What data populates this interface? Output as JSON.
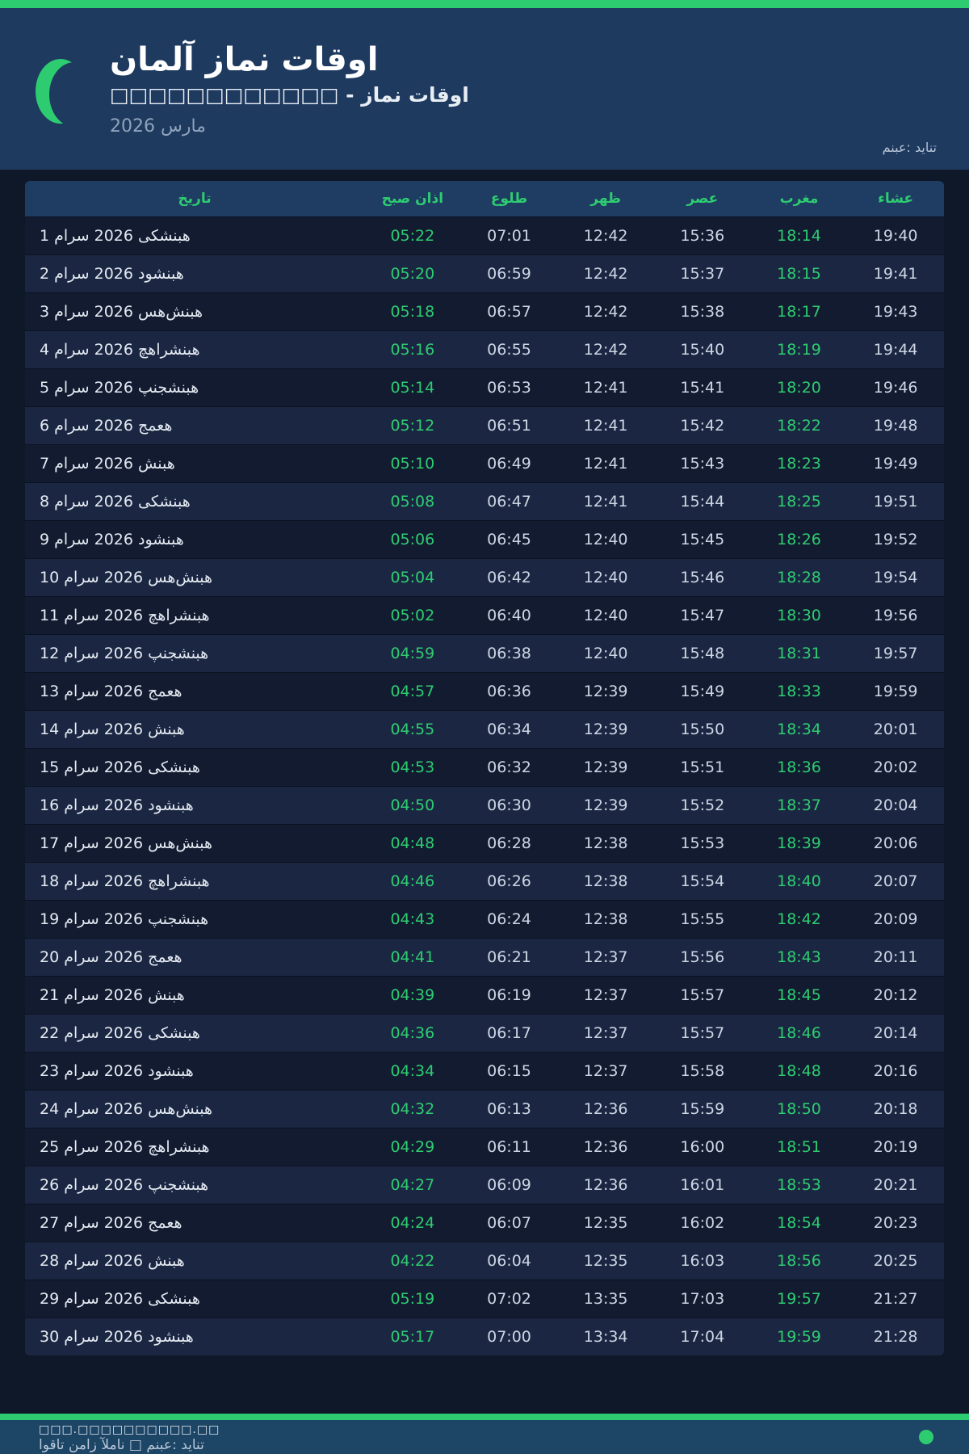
{
  "theme": {
    "accent_green": "#2ecc71",
    "header_bg": "#1e3a5f",
    "footer_bg": "#1d4566",
    "page_bg": "#0e1828",
    "row_dark": "#121b30",
    "row_light": "#1b2742",
    "header_row_bg": "#1f3c63"
  },
  "header": {
    "crescent_icon": "crescent-moon",
    "title": "اوقات نماز آلمان",
    "subtitle": "اوقات نماز - □□□□□□□□□□□□",
    "month": "مارس 2026",
    "source": "منبع: دیانت"
  },
  "table": {
    "columns": [
      {
        "key": "date",
        "label": "تاریخ"
      },
      {
        "key": "fajr",
        "label": "اذان صبح"
      },
      {
        "key": "sunrise",
        "label": "طلوع"
      },
      {
        "key": "dhuhr",
        "label": "ظهر"
      },
      {
        "key": "asr",
        "label": "عصر"
      },
      {
        "key": "maghrib",
        "label": "مغرب"
      },
      {
        "key": "isha",
        "label": "عشاء"
      }
    ],
    "rows": [
      {
        "date": "1 مارس 2026 یکشنبه",
        "fajr": "05:22",
        "sunrise": "07:01",
        "dhuhr": "12:42",
        "asr": "15:36",
        "maghrib": "18:14",
        "isha": "19:40"
      },
      {
        "date": "2 مارس 2026 دوشنبه",
        "fajr": "05:20",
        "sunrise": "06:59",
        "dhuhr": "12:42",
        "asr": "15:37",
        "maghrib": "18:15",
        "isha": "19:41"
      },
      {
        "date": "3 مارس 2026 سه‌شنبه",
        "fajr": "05:18",
        "sunrise": "06:57",
        "dhuhr": "12:42",
        "asr": "15:38",
        "maghrib": "18:17",
        "isha": "19:43"
      },
      {
        "date": "4 مارس 2026 چهارشنبه",
        "fajr": "05:16",
        "sunrise": "06:55",
        "dhuhr": "12:42",
        "asr": "15:40",
        "maghrib": "18:19",
        "isha": "19:44"
      },
      {
        "date": "5 مارس 2026 پنجشنبه",
        "fajr": "05:14",
        "sunrise": "06:53",
        "dhuhr": "12:41",
        "asr": "15:41",
        "maghrib": "18:20",
        "isha": "19:46"
      },
      {
        "date": "6 مارس 2026 جمعه",
        "fajr": "05:12",
        "sunrise": "06:51",
        "dhuhr": "12:41",
        "asr": "15:42",
        "maghrib": "18:22",
        "isha": "19:48"
      },
      {
        "date": "7 مارس 2026 شنبه",
        "fajr": "05:10",
        "sunrise": "06:49",
        "dhuhr": "12:41",
        "asr": "15:43",
        "maghrib": "18:23",
        "isha": "19:49"
      },
      {
        "date": "8 مارس 2026 یکشنبه",
        "fajr": "05:08",
        "sunrise": "06:47",
        "dhuhr": "12:41",
        "asr": "15:44",
        "maghrib": "18:25",
        "isha": "19:51"
      },
      {
        "date": "9 مارس 2026 دوشنبه",
        "fajr": "05:06",
        "sunrise": "06:45",
        "dhuhr": "12:40",
        "asr": "15:45",
        "maghrib": "18:26",
        "isha": "19:52"
      },
      {
        "date": "10 مارس 2026 سه‌شنبه",
        "fajr": "05:04",
        "sunrise": "06:42",
        "dhuhr": "12:40",
        "asr": "15:46",
        "maghrib": "18:28",
        "isha": "19:54"
      },
      {
        "date": "11 مارس 2026 چهارشنبه",
        "fajr": "05:02",
        "sunrise": "06:40",
        "dhuhr": "12:40",
        "asr": "15:47",
        "maghrib": "18:30",
        "isha": "19:56"
      },
      {
        "date": "12 مارس 2026 پنجشنبه",
        "fajr": "04:59",
        "sunrise": "06:38",
        "dhuhr": "12:40",
        "asr": "15:48",
        "maghrib": "18:31",
        "isha": "19:57"
      },
      {
        "date": "13 مارس 2026 جمعه",
        "fajr": "04:57",
        "sunrise": "06:36",
        "dhuhr": "12:39",
        "asr": "15:49",
        "maghrib": "18:33",
        "isha": "19:59"
      },
      {
        "date": "14 مارس 2026 شنبه",
        "fajr": "04:55",
        "sunrise": "06:34",
        "dhuhr": "12:39",
        "asr": "15:50",
        "maghrib": "18:34",
        "isha": "20:01"
      },
      {
        "date": "15 مارس 2026 یکشنبه",
        "fajr": "04:53",
        "sunrise": "06:32",
        "dhuhr": "12:39",
        "asr": "15:51",
        "maghrib": "18:36",
        "isha": "20:02"
      },
      {
        "date": "16 مارس 2026 دوشنبه",
        "fajr": "04:50",
        "sunrise": "06:30",
        "dhuhr": "12:39",
        "asr": "15:52",
        "maghrib": "18:37",
        "isha": "20:04"
      },
      {
        "date": "17 مارس 2026 سه‌شنبه",
        "fajr": "04:48",
        "sunrise": "06:28",
        "dhuhr": "12:38",
        "asr": "15:53",
        "maghrib": "18:39",
        "isha": "20:06"
      },
      {
        "date": "18 مارس 2026 چهارشنبه",
        "fajr": "04:46",
        "sunrise": "06:26",
        "dhuhr": "12:38",
        "asr": "15:54",
        "maghrib": "18:40",
        "isha": "20:07"
      },
      {
        "date": "19 مارس 2026 پنجشنبه",
        "fajr": "04:43",
        "sunrise": "06:24",
        "dhuhr": "12:38",
        "asr": "15:55",
        "maghrib": "18:42",
        "isha": "20:09"
      },
      {
        "date": "20 مارس 2026 جمعه",
        "fajr": "04:41",
        "sunrise": "06:21",
        "dhuhr": "12:37",
        "asr": "15:56",
        "maghrib": "18:43",
        "isha": "20:11"
      },
      {
        "date": "21 مارس 2026 شنبه",
        "fajr": "04:39",
        "sunrise": "06:19",
        "dhuhr": "12:37",
        "asr": "15:57",
        "maghrib": "18:45",
        "isha": "20:12"
      },
      {
        "date": "22 مارس 2026 یکشنبه",
        "fajr": "04:36",
        "sunrise": "06:17",
        "dhuhr": "12:37",
        "asr": "15:57",
        "maghrib": "18:46",
        "isha": "20:14"
      },
      {
        "date": "23 مارس 2026 دوشنبه",
        "fajr": "04:34",
        "sunrise": "06:15",
        "dhuhr": "12:37",
        "asr": "15:58",
        "maghrib": "18:48",
        "isha": "20:16"
      },
      {
        "date": "24 مارس 2026 سه‌شنبه",
        "fajr": "04:32",
        "sunrise": "06:13",
        "dhuhr": "12:36",
        "asr": "15:59",
        "maghrib": "18:50",
        "isha": "20:18"
      },
      {
        "date": "25 مارس 2026 چهارشنبه",
        "fajr": "04:29",
        "sunrise": "06:11",
        "dhuhr": "12:36",
        "asr": "16:00",
        "maghrib": "18:51",
        "isha": "20:19"
      },
      {
        "date": "26 مارس 2026 پنجشنبه",
        "fajr": "04:27",
        "sunrise": "06:09",
        "dhuhr": "12:36",
        "asr": "16:01",
        "maghrib": "18:53",
        "isha": "20:21"
      },
      {
        "date": "27 مارس 2026 جمعه",
        "fajr": "04:24",
        "sunrise": "06:07",
        "dhuhr": "12:35",
        "asr": "16:02",
        "maghrib": "18:54",
        "isha": "20:23"
      },
      {
        "date": "28 مارس 2026 شنبه",
        "fajr": "04:22",
        "sunrise": "06:04",
        "dhuhr": "12:35",
        "asr": "16:03",
        "maghrib": "18:56",
        "isha": "20:25"
      },
      {
        "date": "29 مارس 2026 یکشنبه",
        "fajr": "05:19",
        "sunrise": "07:02",
        "dhuhr": "13:35",
        "asr": "17:03",
        "maghrib": "19:57",
        "isha": "21:27"
      },
      {
        "date": "30 مارس 2026 دوشنبه",
        "fajr": "05:17",
        "sunrise": "07:00",
        "dhuhr": "13:34",
        "asr": "17:04",
        "maghrib": "19:59",
        "isha": "21:28"
      }
    ]
  },
  "footer": {
    "url_placeholder": "□□□.□□□□□□□□□□.□□",
    "tagline": "اوقات نماز آلمان □ منبع: دیانت",
    "status_dot_color": "#2ecc71"
  }
}
